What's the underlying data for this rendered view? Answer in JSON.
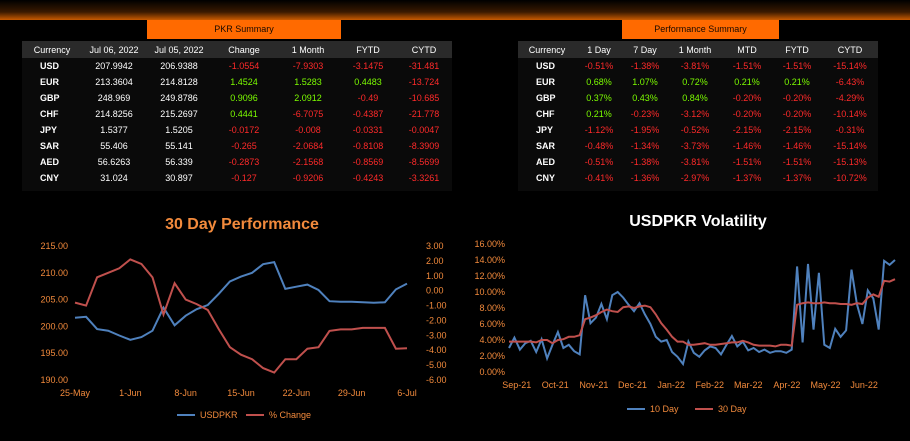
{
  "pkr_summary": {
    "title": "PKR Summary",
    "columns": [
      "Currency",
      "Jul 06, 2022",
      "Jul 05, 2022",
      "Change",
      "1 Month",
      "FYTD",
      "CYTD"
    ],
    "rows": [
      [
        "USD",
        "207.9942",
        "206.9388",
        "-1.0554",
        "-7.9303",
        "-3.1475",
        "-31.481"
      ],
      [
        "EUR",
        "213.3604",
        "214.8128",
        "1.4524",
        "1.5283",
        "0.4483",
        "-13.724"
      ],
      [
        "GBP",
        "248.969",
        "249.8786",
        "0.9096",
        "2.0912",
        "-0.49",
        "-10.685"
      ],
      [
        "CHF",
        "214.8256",
        "215.2697",
        "0.4441",
        "-6.7075",
        "-0.4387",
        "-21.778"
      ],
      [
        "JPY",
        "1.5377",
        "1.5205",
        "-0.0172",
        "-0.008",
        "-0.0331",
        "-0.0047"
      ],
      [
        "SAR",
        "55.406",
        "55.141",
        "-0.265",
        "-2.0684",
        "-0.8108",
        "-8.3909"
      ],
      [
        "AED",
        "56.6263",
        "56.339",
        "-0.2873",
        "-2.1568",
        "-0.8569",
        "-8.5699"
      ],
      [
        "CNY",
        "31.024",
        "30.897",
        "-0.127",
        "-0.9206",
        "-0.4243",
        "-3.3261"
      ]
    ]
  },
  "performance_summary": {
    "title": "Performance Summary",
    "columns": [
      "Currency",
      "1 Day",
      "7 Day",
      "1 Month",
      "MTD",
      "FYTD",
      "CYTD"
    ],
    "rows": [
      [
        "USD",
        "-0.51%",
        "-1.38%",
        "-3.81%",
        "-1.51%",
        "-1.51%",
        "-15.14%"
      ],
      [
        "EUR",
        "0.68%",
        "1.07%",
        "0.72%",
        "0.21%",
        "0.21%",
        "-6.43%"
      ],
      [
        "GBP",
        "0.37%",
        "0.43%",
        "0.84%",
        "-0.20%",
        "-0.20%",
        "-4.29%"
      ],
      [
        "CHF",
        "0.21%",
        "-0.23%",
        "-3.12%",
        "-0.20%",
        "-0.20%",
        "-10.14%"
      ],
      [
        "JPY",
        "-1.12%",
        "-1.95%",
        "-0.52%",
        "-2.15%",
        "-2.15%",
        "-0.31%"
      ],
      [
        "SAR",
        "-0.48%",
        "-1.34%",
        "-3.73%",
        "-1.46%",
        "-1.46%",
        "-15.14%"
      ],
      [
        "AED",
        "-0.51%",
        "-1.38%",
        "-3.81%",
        "-1.51%",
        "-1.51%",
        "-15.13%"
      ],
      [
        "CNY",
        "-0.41%",
        "-1.36%",
        "-2.97%",
        "-1.37%",
        "-1.37%",
        "-10.72%"
      ]
    ]
  },
  "colors": {
    "accent": "#ff6a00",
    "positive": "#7cfc00",
    "negative": "#ff2a2a",
    "blue": "#4f81bd",
    "red": "#c0504d",
    "title_orange": "#f28a3c"
  },
  "chart_data": [
    {
      "type": "line",
      "title": "30 Day Performance",
      "x": [
        "25-May",
        "26-May",
        "27-May",
        "30-May",
        "31-May",
        "1-Jun",
        "2-Jun",
        "3-Jun",
        "6-Jun",
        "7-Jun",
        "8-Jun",
        "9-Jun",
        "10-Jun",
        "13-Jun",
        "14-Jun",
        "15-Jun",
        "16-Jun",
        "17-Jun",
        "20-Jun",
        "21-Jun",
        "22-Jun",
        "23-Jun",
        "24-Jun",
        "27-Jun",
        "28-Jun",
        "29-Jun",
        "30-Jun",
        "1-Jul",
        "4-Jul",
        "5-Jul",
        "6-Jul"
      ],
      "xticks": [
        "25-May",
        "1-Jun",
        "8-Jun",
        "15-Jun",
        "22-Jun",
        "29-Jun",
        "6-Jul"
      ],
      "series": [
        {
          "name": "USDPKR",
          "axis": "left",
          "values": [
            201.6,
            201.8,
            199.5,
            199.2,
            198.3,
            197.5,
            198.0,
            199.2,
            203.5,
            200.2,
            202.0,
            203.2,
            204.0,
            206.1,
            208.4,
            209.3,
            210.0,
            211.6,
            212.0,
            207.0,
            207.4,
            207.8,
            206.8,
            204.7,
            204.6,
            204.6,
            204.5,
            204.4,
            204.5,
            206.9,
            207.99
          ]
        },
        {
          "name": "% Change",
          "axis": "right",
          "values": [
            -0.8,
            -1.0,
            0.9,
            1.2,
            1.5,
            2.1,
            1.8,
            0.9,
            -1.6,
            0.5,
            -0.6,
            -0.9,
            -1.3,
            -2.6,
            -3.8,
            -4.3,
            -4.6,
            -5.2,
            -5.5,
            -4.6,
            -4.6,
            -3.9,
            -3.8,
            -2.7,
            -2.6,
            -2.6,
            -2.5,
            -2.5,
            -2.5,
            -3.9,
            -3.87
          ]
        }
      ],
      "y_left": {
        "min": 190,
        "max": 215,
        "ticks": [
          "190.00",
          "195.00",
          "200.00",
          "205.00",
          "210.00",
          "215.00"
        ]
      },
      "y_right": {
        "min": -6,
        "max": 3,
        "ticks": [
          "-6.00",
          "-5.00",
          "-4.00",
          "-3.00",
          "-2.00",
          "-1.00",
          "0.00",
          "1.00",
          "2.00",
          "3.00"
        ]
      },
      "legend": [
        "USDPKR",
        "% Change"
      ],
      "legend_position": "bottom",
      "grid": false
    },
    {
      "type": "line",
      "title": "USDPKR Volatility",
      "xticks": [
        "Sep-21",
        "Oct-21",
        "Nov-21",
        "Dec-21",
        "Jan-22",
        "Feb-22",
        "Mar-22",
        "Apr-22",
        "May-22",
        "Jun-22"
      ],
      "series": [
        {
          "name": "10 Day",
          "values": [
            3.0,
            4.3,
            2.8,
            3.6,
            3.9,
            2.5,
            4.1,
            1.7,
            3.4,
            5.0,
            3.0,
            3.4,
            2.6,
            2.2,
            9.6,
            6.1,
            6.8,
            8.5,
            6.6,
            9.6,
            10.0,
            9.3,
            8.4,
            7.6,
            8.6,
            7.2,
            6.0,
            4.4,
            3.8,
            4.0,
            2.5,
            1.9,
            1.0,
            3.8,
            2.4,
            1.9,
            2.7,
            3.2,
            3.0,
            2.2,
            3.4,
            4.5,
            3.2,
            3.8,
            2.7,
            3.0,
            2.5,
            2.8,
            2.4,
            2.6,
            2.6,
            2.4,
            2.8,
            13.2,
            3.7,
            13.5,
            5.3,
            12.4,
            3.4,
            3.0,
            5.4,
            4.4,
            5.2,
            12.8,
            8.5,
            6.0,
            10.2,
            9.2,
            5.3,
            13.9,
            13.4,
            14.0
          ]
        },
        {
          "name": "30 Day",
          "values": [
            3.8,
            3.8,
            3.8,
            3.8,
            3.8,
            3.7,
            4.0,
            4.0,
            3.6,
            4.0,
            4.1,
            4.4,
            4.4,
            4.6,
            6.6,
            6.8,
            7.1,
            7.5,
            7.8,
            7.6,
            7.5,
            8.1,
            8.2,
            8.0,
            8.2,
            8.3,
            8.1,
            7.2,
            6.1,
            5.3,
            4.4,
            3.8,
            3.8,
            3.4,
            3.4,
            3.5,
            3.6,
            3.4,
            3.4,
            3.5,
            3.6,
            3.7,
            3.7,
            3.9,
            3.7,
            3.4,
            3.3,
            3.3,
            3.3,
            3.2,
            3.4,
            3.4,
            3.3,
            8.4,
            8.6,
            8.7,
            8.6,
            8.6,
            8.7,
            8.6,
            8.6,
            8.5,
            8.5,
            8.4,
            8.6,
            8.5,
            9.3,
            9.7,
            9.4,
            11.4,
            11.3,
            11.6
          ]
        }
      ],
      "y": {
        "min": 0,
        "max": 16,
        "ticks": [
          "0.00%",
          "2.00%",
          "4.00%",
          "6.00%",
          "8.00%",
          "10.00%",
          "12.00%",
          "14.00%",
          "16.00%"
        ]
      },
      "legend": [
        "10 Day",
        "30 Day"
      ],
      "legend_position": "bottom",
      "grid": false
    }
  ]
}
